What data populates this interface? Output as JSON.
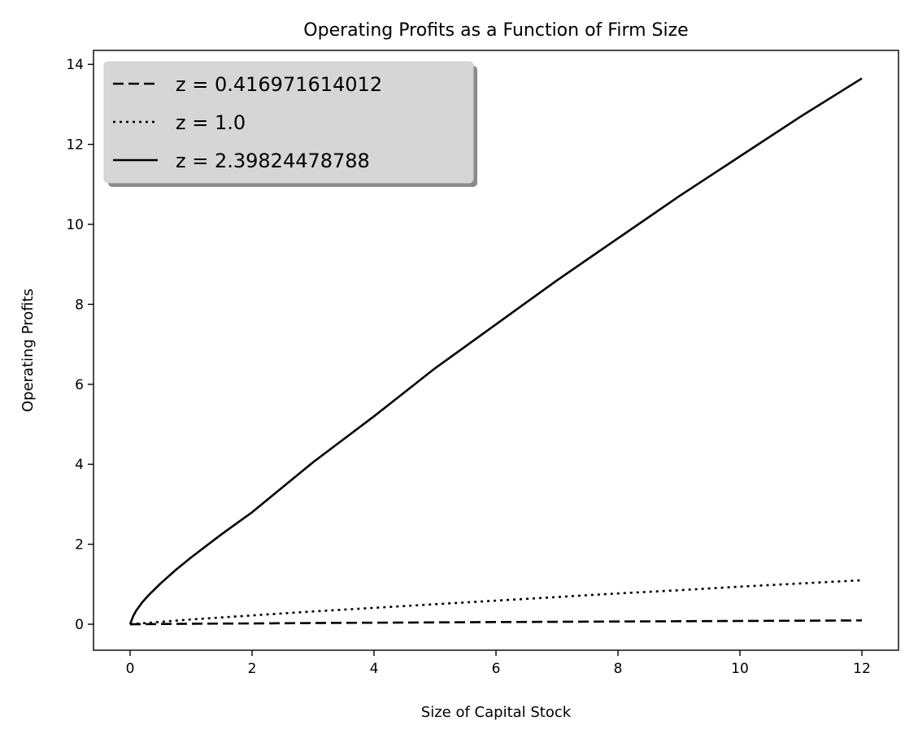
{
  "chart_data": {
    "type": "line",
    "title": "Operating Profits as a Function of Firm Size",
    "xlabel": "Size of Capital Stock",
    "ylabel": "Operating Profits",
    "xlim": [
      -0.6,
      12.6
    ],
    "ylim": [
      -0.65,
      14.35
    ],
    "xticks": [
      0,
      2,
      4,
      6,
      8,
      10,
      12
    ],
    "yticks": [
      0,
      2,
      4,
      6,
      8,
      10,
      12,
      14
    ],
    "grid": false,
    "legend_position": "upper left",
    "series": [
      {
        "name": "z = 0.416971614012",
        "style": "dashed",
        "color": "#000000",
        "x": [
          0,
          1,
          2,
          3,
          4,
          5,
          6,
          7,
          8,
          9,
          10,
          11,
          12
        ],
        "y": [
          0,
          0.012,
          0.02,
          0.03,
          0.038,
          0.046,
          0.054,
          0.061,
          0.068,
          0.075,
          0.082,
          0.088,
          0.095
        ]
      },
      {
        "name": "z = 1.0",
        "style": "dotted",
        "color": "#000000",
        "x": [
          0,
          1,
          2,
          3,
          4,
          5,
          6,
          7,
          8,
          9,
          10,
          11,
          12
        ],
        "y": [
          0,
          0.12,
          0.22,
          0.32,
          0.41,
          0.5,
          0.59,
          0.68,
          0.77,
          0.85,
          0.94,
          1.02,
          1.1
        ]
      },
      {
        "name": "z = 2.39824478788",
        "style": "solid",
        "color": "#000000",
        "x": [
          0,
          0.05,
          0.1,
          0.2,
          0.3,
          0.5,
          0.75,
          1,
          1.5,
          2,
          3,
          4,
          5,
          6,
          7,
          8,
          9,
          10,
          11,
          12
        ],
        "y": [
          0,
          0.2,
          0.34,
          0.55,
          0.72,
          1.02,
          1.36,
          1.67,
          2.25,
          2.8,
          4.05,
          5.2,
          6.4,
          7.5,
          8.6,
          9.65,
          10.7,
          11.7,
          12.7,
          13.65
        ]
      }
    ]
  }
}
